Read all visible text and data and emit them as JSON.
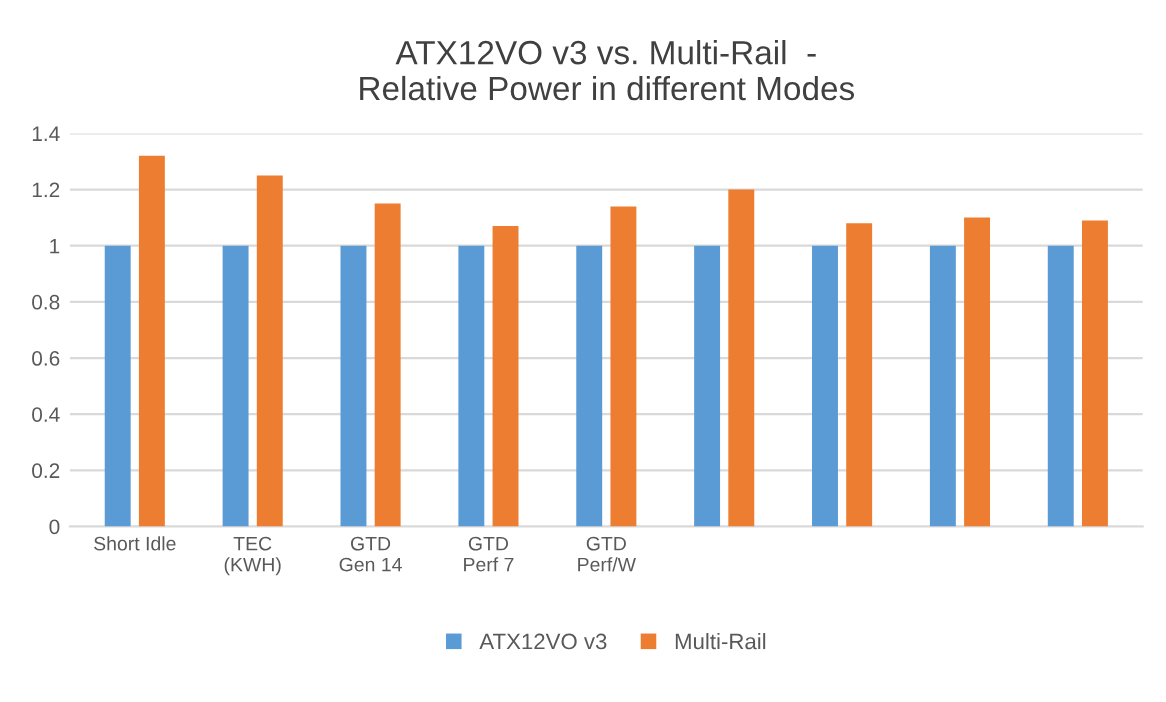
{
  "chart_data": {
    "type": "bar",
    "title": "ATX12VO v3 vs. Multi-Rail  -\nRelative Power in different Modes",
    "categories": [
      "Short Idle",
      "TEC\n(KWH)",
      "GTD\nGen 14",
      "GTD\nPerf 7",
      "GTD\nPerf/W",
      null,
      null,
      null,
      null
    ],
    "series": [
      {
        "name": "ATX12VO v3",
        "color": "#5b9bd5",
        "values": [
          1,
          1,
          1,
          1,
          1,
          1,
          1,
          1,
          1
        ]
      },
      {
        "name": "Multi-Rail",
        "color": "#ed7d31",
        "values": [
          1.32,
          1.25,
          1.15,
          1.07,
          1.14,
          1.2,
          1.08,
          1.1,
          1.09
        ]
      }
    ],
    "ylim": [
      0,
      1.4
    ],
    "yticks": [
      {
        "value": 0,
        "label": "0"
      },
      0.2,
      0.4,
      0.6,
      0.8,
      {
        "value": 1,
        "label": "1"
      },
      1.2,
      1.4
    ],
    "grid": "y",
    "legend": "bottom"
  }
}
